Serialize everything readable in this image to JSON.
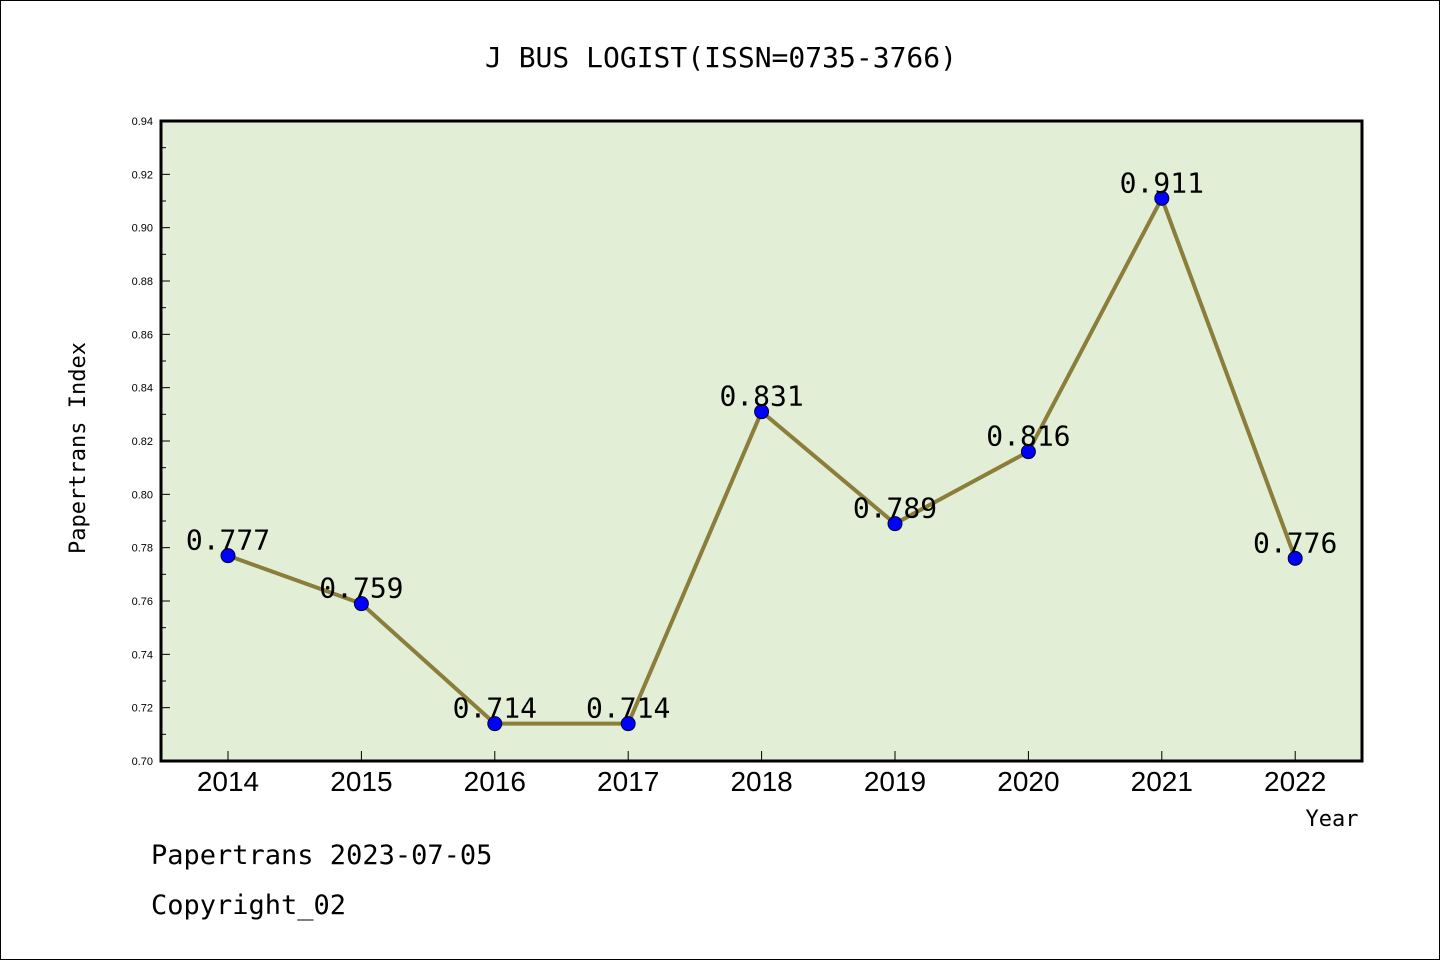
{
  "chart_data": {
    "type": "line",
    "title": "J BUS LOGIST(ISSN=0735-3766)",
    "xlabel": "Year",
    "ylabel": "Papertrans Index",
    "categories": [
      "2014",
      "2015",
      "2016",
      "2017",
      "2018",
      "2019",
      "2020",
      "2021",
      "2022"
    ],
    "values": [
      0.777,
      0.759,
      0.714,
      0.714,
      0.831,
      0.789,
      0.816,
      0.911,
      0.776
    ],
    "value_labels": [
      "0.777",
      "0.759",
      "0.714",
      "0.714",
      "0.831",
      "0.789",
      "0.816",
      "0.911",
      "0.776"
    ],
    "ylim": [
      0.7,
      0.94
    ],
    "yticks": [
      "0.70",
      "0.72",
      "0.74",
      "0.76",
      "0.78",
      "0.80",
      "0.82",
      "0.84",
      "0.86",
      "0.88",
      "0.90",
      "0.92",
      "0.94"
    ],
    "grid": false,
    "colors": {
      "plot_background": "#e2efd6",
      "line": "#8b7d3a",
      "marker": "#0000ff"
    }
  },
  "footer": {
    "line1": "Papertrans 2023-07-05",
    "line2": "Copyright_02"
  }
}
